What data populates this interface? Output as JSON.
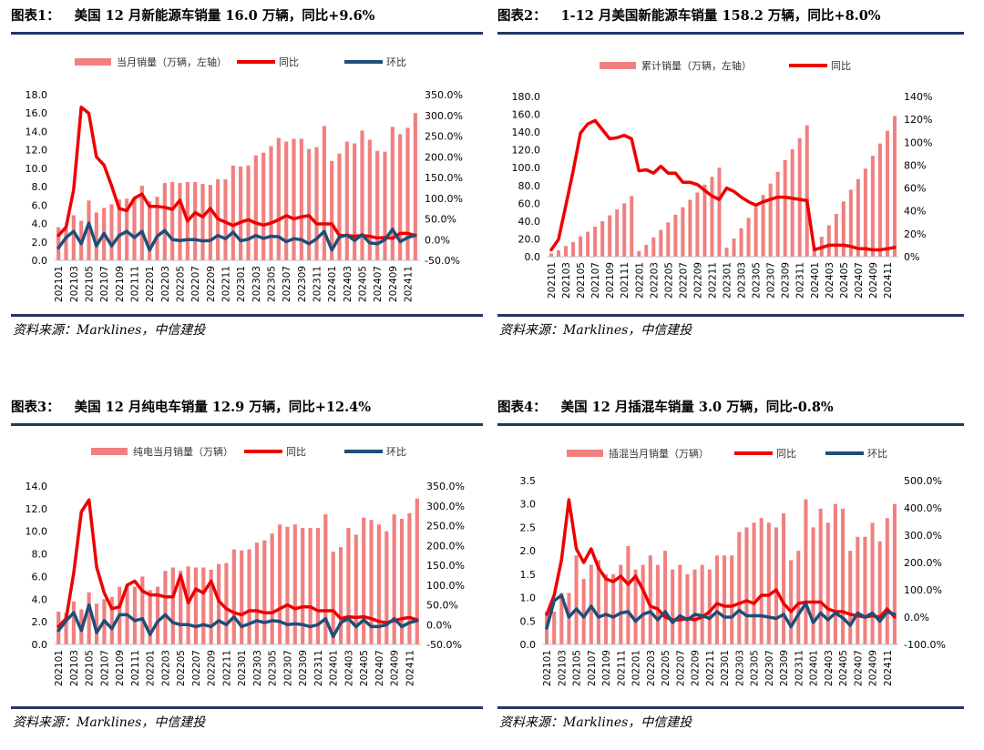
{
  "colors": {
    "bar": "#f08080",
    "yoy": "#ee0000",
    "mom": "#1f4e79",
    "rule": "#1f3864"
  },
  "source_label": "资料来源：Marklines，中信建投",
  "months_label": [
    "202101",
    "202103",
    "202105",
    "202107",
    "202109",
    "202111",
    "202201",
    "202203",
    "202205",
    "202207",
    "202209",
    "202211",
    "202301",
    "202303",
    "202305",
    "202307",
    "202309",
    "202311",
    "202401",
    "202403",
    "202405",
    "202407",
    "202409",
    "202411"
  ],
  "charts": [
    {
      "figure_label": "图表1：",
      "title": "美国 12 月新能源车销量 16.0 万辆，同比+9.6%",
      "source": "资料来源：Marklines，中信建投",
      "chart_data": {
        "type": "bar+line",
        "legend": [
          "当月销量（万辆，左轴）",
          "同比",
          "环比"
        ],
        "left_axis": {
          "min": 0,
          "max": 18,
          "ticks": [
            "0.0",
            "2.0",
            "4.0",
            "6.0",
            "8.0",
            "10.0",
            "12.0",
            "14.0",
            "16.0",
            "18.0"
          ]
        },
        "right_axis": {
          "min": -50,
          "max": 350,
          "ticks": [
            "-50.0%",
            "0.0%",
            "50.0%",
            "100.0%",
            "150.0%",
            "200.0%",
            "250.0%",
            "300.0%",
            "350.0%"
          ]
        },
        "x": [
          "202101",
          "202102",
          "202103",
          "202104",
          "202105",
          "202106",
          "202107",
          "202108",
          "202109",
          "202110",
          "202111",
          "202112",
          "202201",
          "202202",
          "202203",
          "202204",
          "202205",
          "202206",
          "202207",
          "202208",
          "202209",
          "202210",
          "202211",
          "202212",
          "202301",
          "202302",
          "202303",
          "202304",
          "202305",
          "202306",
          "202307",
          "202308",
          "202309",
          "202310",
          "202311",
          "202312",
          "202401",
          "202402",
          "202403",
          "202404",
          "202405",
          "202406",
          "202407",
          "202408",
          "202409",
          "202410",
          "202411",
          "202412"
        ],
        "bars": [
          3.6,
          3.5,
          4.9,
          4.3,
          6.5,
          5.2,
          5.7,
          6.1,
          6.6,
          6.7,
          6.8,
          8.1,
          6.4,
          6.9,
          8.4,
          8.5,
          8.4,
          8.5,
          8.5,
          8.3,
          8.2,
          8.8,
          8.8,
          10.3,
          10.2,
          10.3,
          11.4,
          11.7,
          12.4,
          13.3,
          12.9,
          13.2,
          13.2,
          12.1,
          12.3,
          14.6,
          10.8,
          11.6,
          12.9,
          12.7,
          14.1,
          13.1,
          11.9,
          11.8,
          14.5,
          13.7,
          14.4,
          16.0
        ],
        "series": [
          {
            "name": "同比",
            "values": [
              10,
              30,
              120,
              320,
              305,
              200,
              180,
              130,
              75,
              70,
              100,
              110,
              80,
              80,
              78,
              73,
              95,
              45,
              65,
              55,
              75,
              50,
              42,
              34,
              42,
              48,
              40,
              35,
              40,
              48,
              58,
              50,
              55,
              58,
              38,
              38,
              38,
              10,
              10,
              8,
              10,
              8,
              4,
              5,
              3,
              15,
              15,
              10
            ]
          },
          {
            "name": "环比",
            "values": [
              -20,
              5,
              20,
              -10,
              40,
              -15,
              15,
              -15,
              10,
              20,
              5,
              20,
              -25,
              8,
              22,
              0,
              -2,
              0,
              0,
              -3,
              -2,
              10,
              2,
              18,
              -3,
              1,
              10,
              3,
              8,
              7,
              -5,
              2,
              0,
              -10,
              2,
              20,
              -25,
              6,
              11,
              -2,
              12,
              -8,
              -10,
              0,
              25,
              -5,
              5,
              10
            ]
          }
        ]
      }
    },
    {
      "figure_label": "图表2：",
      "title": "1-12 月美国新能源车销量 158.2 万辆，同比+8.0%",
      "source": "资料来源：Marklines，中信建投",
      "chart_data": {
        "type": "bar+line",
        "legend": [
          "累计销量（万辆，左轴）",
          "同比"
        ],
        "left_axis": {
          "min": 0,
          "max": 180,
          "ticks": [
            "0.0",
            "20.0",
            "40.0",
            "60.0",
            "80.0",
            "100.0",
            "120.0",
            "140.0",
            "160.0",
            "180.0"
          ]
        },
        "right_axis": {
          "min": 0,
          "max": 140,
          "ticks": [
            "0%",
            "20%",
            "40%",
            "60%",
            "80%",
            "100%",
            "120%",
            "140%"
          ]
        },
        "x": [
          "202101",
          "202102",
          "202103",
          "202104",
          "202105",
          "202106",
          "202107",
          "202108",
          "202109",
          "202110",
          "202111",
          "202112",
          "202201",
          "202202",
          "202203",
          "202204",
          "202205",
          "202206",
          "202207",
          "202208",
          "202209",
          "202210",
          "202211",
          "202212",
          "202301",
          "202302",
          "202303",
          "202304",
          "202305",
          "202306",
          "202307",
          "202308",
          "202309",
          "202310",
          "202311",
          "202312",
          "202401",
          "202402",
          "202403",
          "202404",
          "202405",
          "202406",
          "202407",
          "202408",
          "202409",
          "202410",
          "202411",
          "202412"
        ],
        "bars": [
          3.6,
          7.1,
          12.0,
          16.3,
          22.8,
          28.0,
          33.7,
          39.8,
          46.4,
          53.1,
          59.9,
          68.0,
          6.4,
          13.3,
          21.7,
          30.2,
          38.6,
          47.1,
          55.6,
          63.9,
          72.1,
          80.9,
          89.7,
          100.0,
          10.2,
          20.5,
          31.9,
          43.6,
          56.0,
          69.3,
          82.2,
          95.4,
          108.6,
          120.7,
          133.0,
          147.6,
          10.8,
          22.4,
          35.3,
          48.0,
          62.1,
          75.2,
          87.1,
          98.9,
          113.4,
          127.1,
          141.5,
          158.2
        ],
        "series": [
          {
            "name": "同比",
            "values": [
              6,
              15,
              45,
              75,
              108,
              116,
              119,
              111,
              103,
              104,
              106,
              103,
              75,
              76,
              73,
              79,
              73,
              73,
              65,
              65,
              63,
              58,
              53,
              50,
              60,
              57,
              52,
              48,
              45,
              48,
              50,
              52,
              52,
              51,
              50,
              49,
              6,
              8,
              10,
              10,
              10,
              9,
              7,
              7,
              6,
              6,
              7,
              8
            ]
          }
        ]
      }
    },
    {
      "figure_label": "图表3：",
      "title": "美国 12 月纯电车销量 12.9 万辆，同比+12.4%",
      "source": "资料来源：Marklines，中信建投",
      "chart_data": {
        "type": "bar+line",
        "legend": [
          "纯电当月销量（万辆）",
          "同比",
          "环比"
        ],
        "left_axis": {
          "min": 0,
          "max": 14,
          "ticks": [
            "0.0",
            "2.0",
            "4.0",
            "6.0",
            "8.0",
            "10.0",
            "12.0",
            "14.0"
          ]
        },
        "right_axis": {
          "min": -50,
          "max": 350,
          "ticks": [
            "-50.0%",
            "0.0%",
            "50.0%",
            "100.0%",
            "150.0%",
            "200.0%",
            "250.0%",
            "300.0%",
            "350.0%"
          ]
        },
        "x": [
          "202101",
          "202102",
          "202103",
          "202104",
          "202105",
          "202106",
          "202107",
          "202108",
          "202109",
          "202110",
          "202111",
          "202112",
          "202201",
          "202202",
          "202203",
          "202204",
          "202205",
          "202206",
          "202207",
          "202208",
          "202209",
          "202210",
          "202211",
          "202212",
          "202301",
          "202302",
          "202303",
          "202304",
          "202305",
          "202306",
          "202307",
          "202308",
          "202309",
          "202310",
          "202311",
          "202312",
          "202401",
          "202402",
          "202403",
          "202404",
          "202405",
          "202406",
          "202407",
          "202408",
          "202409",
          "202410",
          "202411",
          "202412"
        ],
        "bars": [
          2.9,
          2.8,
          3.8,
          3.1,
          4.6,
          3.6,
          4.0,
          4.2,
          5.1,
          5.2,
          5.1,
          6.0,
          4.8,
          5.1,
          6.5,
          6.8,
          6.5,
          6.9,
          6.8,
          6.8,
          6.6,
          7.1,
          7.2,
          8.4,
          8.3,
          8.4,
          9.0,
          9.2,
          9.8,
          10.6,
          10.4,
          10.6,
          10.3,
          10.3,
          10.3,
          11.5,
          8.2,
          8.6,
          10.3,
          9.7,
          11.2,
          11.0,
          10.6,
          10.0,
          11.5,
          11.1,
          11.6,
          12.9
        ],
        "series": [
          {
            "name": "同比",
            "values": [
              -5,
              15,
              130,
              285,
              315,
              145,
              80,
              40,
              45,
              100,
              110,
              85,
              75,
              75,
              70,
              70,
              125,
              55,
              90,
              80,
              110,
              60,
              40,
              30,
              25,
              35,
              35,
              30,
              30,
              40,
              50,
              40,
              45,
              45,
              35,
              35,
              35,
              15,
              20,
              18,
              20,
              15,
              8,
              5,
              10,
              15,
              18,
              12
            ]
          },
          {
            "name": "环比",
            "values": [
              -15,
              10,
              30,
              -15,
              50,
              -20,
              10,
              -10,
              25,
              25,
              10,
              15,
              -25,
              8,
              25,
              5,
              0,
              0,
              -5,
              0,
              -5,
              10,
              0,
              20,
              -5,
              2,
              10,
              5,
              10,
              8,
              0,
              2,
              0,
              -5,
              0,
              15,
              -30,
              5,
              15,
              -5,
              12,
              -5,
              -5,
              0,
              15,
              -5,
              5,
              10
            ]
          }
        ]
      }
    },
    {
      "figure_label": "图表4：",
      "title": "美国 12 月插混车销量 3.0 万辆，同比-0.8%",
      "source": "资料来源：Marklines，中信建投",
      "chart_data": {
        "type": "bar+line",
        "legend": [
          "插混当月销量（万辆）",
          "同比",
          "环比"
        ],
        "left_axis": {
          "min": 0,
          "max": 3.5,
          "ticks": [
            "0.0",
            "0.5",
            "1.0",
            "1.5",
            "2.0",
            "2.5",
            "3.0",
            "3.5"
          ]
        },
        "right_axis": {
          "min": -100,
          "max": 500,
          "ticks": [
            "-100.0%",
            "0.0%",
            "100.0%",
            "200.0%",
            "300.0%",
            "400.0%",
            "500.0%"
          ]
        },
        "x": [
          "202101",
          "202102",
          "202103",
          "202104",
          "202105",
          "202106",
          "202107",
          "202108",
          "202109",
          "202110",
          "202111",
          "202112",
          "202201",
          "202202",
          "202203",
          "202204",
          "202205",
          "202206",
          "202207",
          "202208",
          "202209",
          "202210",
          "202211",
          "202212",
          "202301",
          "202302",
          "202303",
          "202304",
          "202305",
          "202306",
          "202307",
          "202308",
          "202309",
          "202310",
          "202311",
          "202312",
          "202401",
          "202402",
          "202403",
          "202404",
          "202405",
          "202406",
          "202407",
          "202408",
          "202409",
          "202410",
          "202411",
          "202412"
        ],
        "bars": [
          0.7,
          0.7,
          1.1,
          1.1,
          1.9,
          1.4,
          1.7,
          1.8,
          1.5,
          1.5,
          1.7,
          2.1,
          1.6,
          1.7,
          1.9,
          1.7,
          2.0,
          1.6,
          1.7,
          1.5,
          1.6,
          1.7,
          1.6,
          1.9,
          1.9,
          1.9,
          2.4,
          2.5,
          2.6,
          2.7,
          2.6,
          2.5,
          2.8,
          1.8,
          2.0,
          3.1,
          2.5,
          2.9,
          2.6,
          3.0,
          2.9,
          2.0,
          2.3,
          2.3,
          2.6,
          2.2,
          2.7,
          3.0
        ],
        "series": [
          {
            "name": "同比",
            "values": [
              10,
              80,
              210,
              430,
              250,
              200,
              250,
              180,
              140,
              130,
              150,
              120,
              150,
              100,
              40,
              30,
              0,
              -10,
              -10,
              -5,
              -10,
              0,
              20,
              50,
              40,
              40,
              50,
              60,
              50,
              80,
              80,
              100,
              50,
              20,
              50,
              55,
              55,
              55,
              30,
              20,
              20,
              10,
              5,
              0,
              5,
              0,
              30,
              0
            ]
          },
          {
            "name": "环比",
            "values": [
              -40,
              60,
              80,
              0,
              30,
              0,
              40,
              0,
              10,
              0,
              15,
              20,
              -15,
              10,
              20,
              -10,
              20,
              -20,
              5,
              -10,
              10,
              5,
              -5,
              20,
              0,
              0,
              25,
              5,
              5,
              5,
              0,
              -5,
              10,
              -35,
              10,
              50,
              -20,
              15,
              -10,
              15,
              -3,
              -30,
              15,
              0,
              15,
              -15,
              20,
              10
            ]
          }
        ]
      }
    }
  ]
}
